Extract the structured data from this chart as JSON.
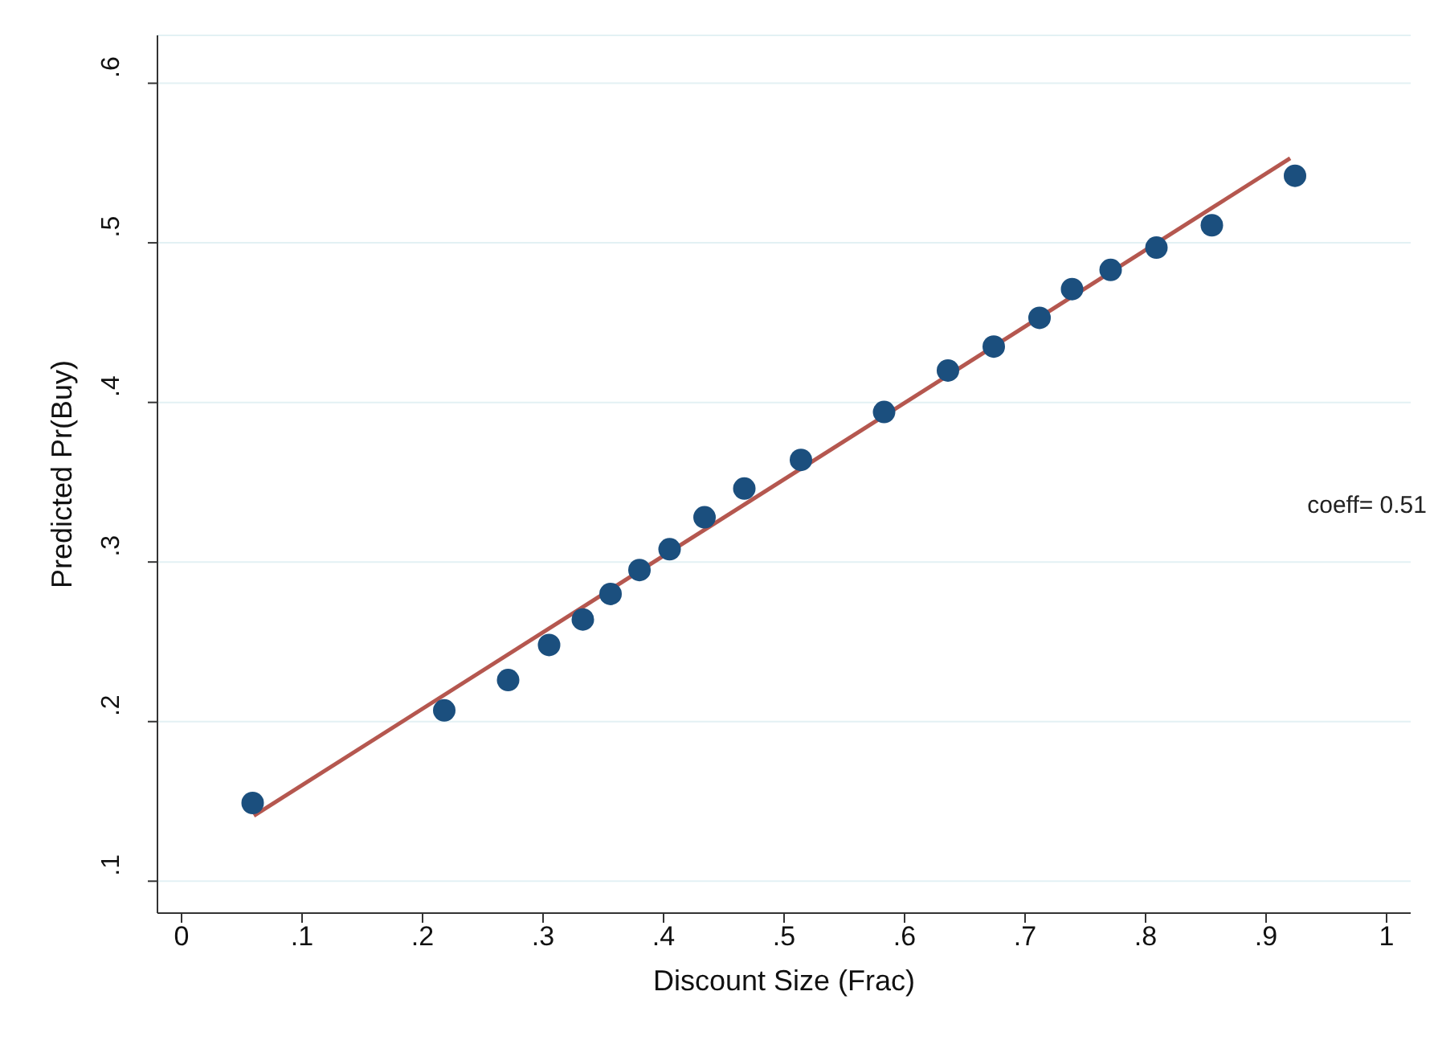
{
  "chart_data": {
    "type": "scatter",
    "xlabel": "Discount Size (Frac)",
    "ylabel": "Predicted Pr(Buy)",
    "annotations": [
      "coeff= 0.51"
    ],
    "xlim": [
      -0.02,
      1.02
    ],
    "ylim": [
      0.08,
      0.63
    ],
    "xticks": [
      0,
      {
        "value": 0.1,
        "label": ".1"
      },
      {
        "value": 0.2,
        "label": ".2"
      },
      {
        "value": 0.3,
        "label": ".3"
      },
      {
        "value": 0.4,
        "label": ".4"
      },
      {
        "value": 0.5,
        "label": ".5"
      },
      {
        "value": 0.6,
        "label": ".6"
      },
      {
        "value": 0.7,
        "label": ".7"
      },
      {
        "value": 0.8,
        "label": ".8"
      },
      {
        "value": 0.9,
        "label": ".9"
      },
      1
    ],
    "yticks": [
      {
        "value": 0.1,
        "label": ".1"
      },
      {
        "value": 0.2,
        "label": ".2"
      },
      {
        "value": 0.3,
        "label": ".3"
      },
      {
        "value": 0.4,
        "label": ".4"
      },
      {
        "value": 0.5,
        "label": ".5"
      },
      {
        "value": 0.6,
        "label": ".6"
      }
    ],
    "grid": "y",
    "marker": "circle",
    "series": [
      {
        "color": "#1b4f7e",
        "x": [
          0.059,
          0.218,
          0.271,
          0.305,
          0.333,
          0.356,
          0.38,
          0.405,
          0.434,
          0.467,
          0.514,
          0.583,
          0.636,
          0.674,
          0.712,
          0.739,
          0.771,
          0.809,
          0.855,
          0.924
        ],
        "values": [
          0.149,
          0.207,
          0.226,
          0.248,
          0.264,
          0.28,
          0.295,
          0.308,
          0.328,
          0.346,
          0.364,
          0.394,
          0.42,
          0.435,
          0.453,
          0.471,
          0.483,
          0.497,
          0.511,
          0.542
        ]
      },
      {
        "type": "line",
        "color": "#b5574f",
        "marker": "none",
        "line_style": "solid",
        "x": [
          0.06,
          0.92
        ],
        "values": [
          0.141,
          0.553
        ]
      }
    ]
  }
}
